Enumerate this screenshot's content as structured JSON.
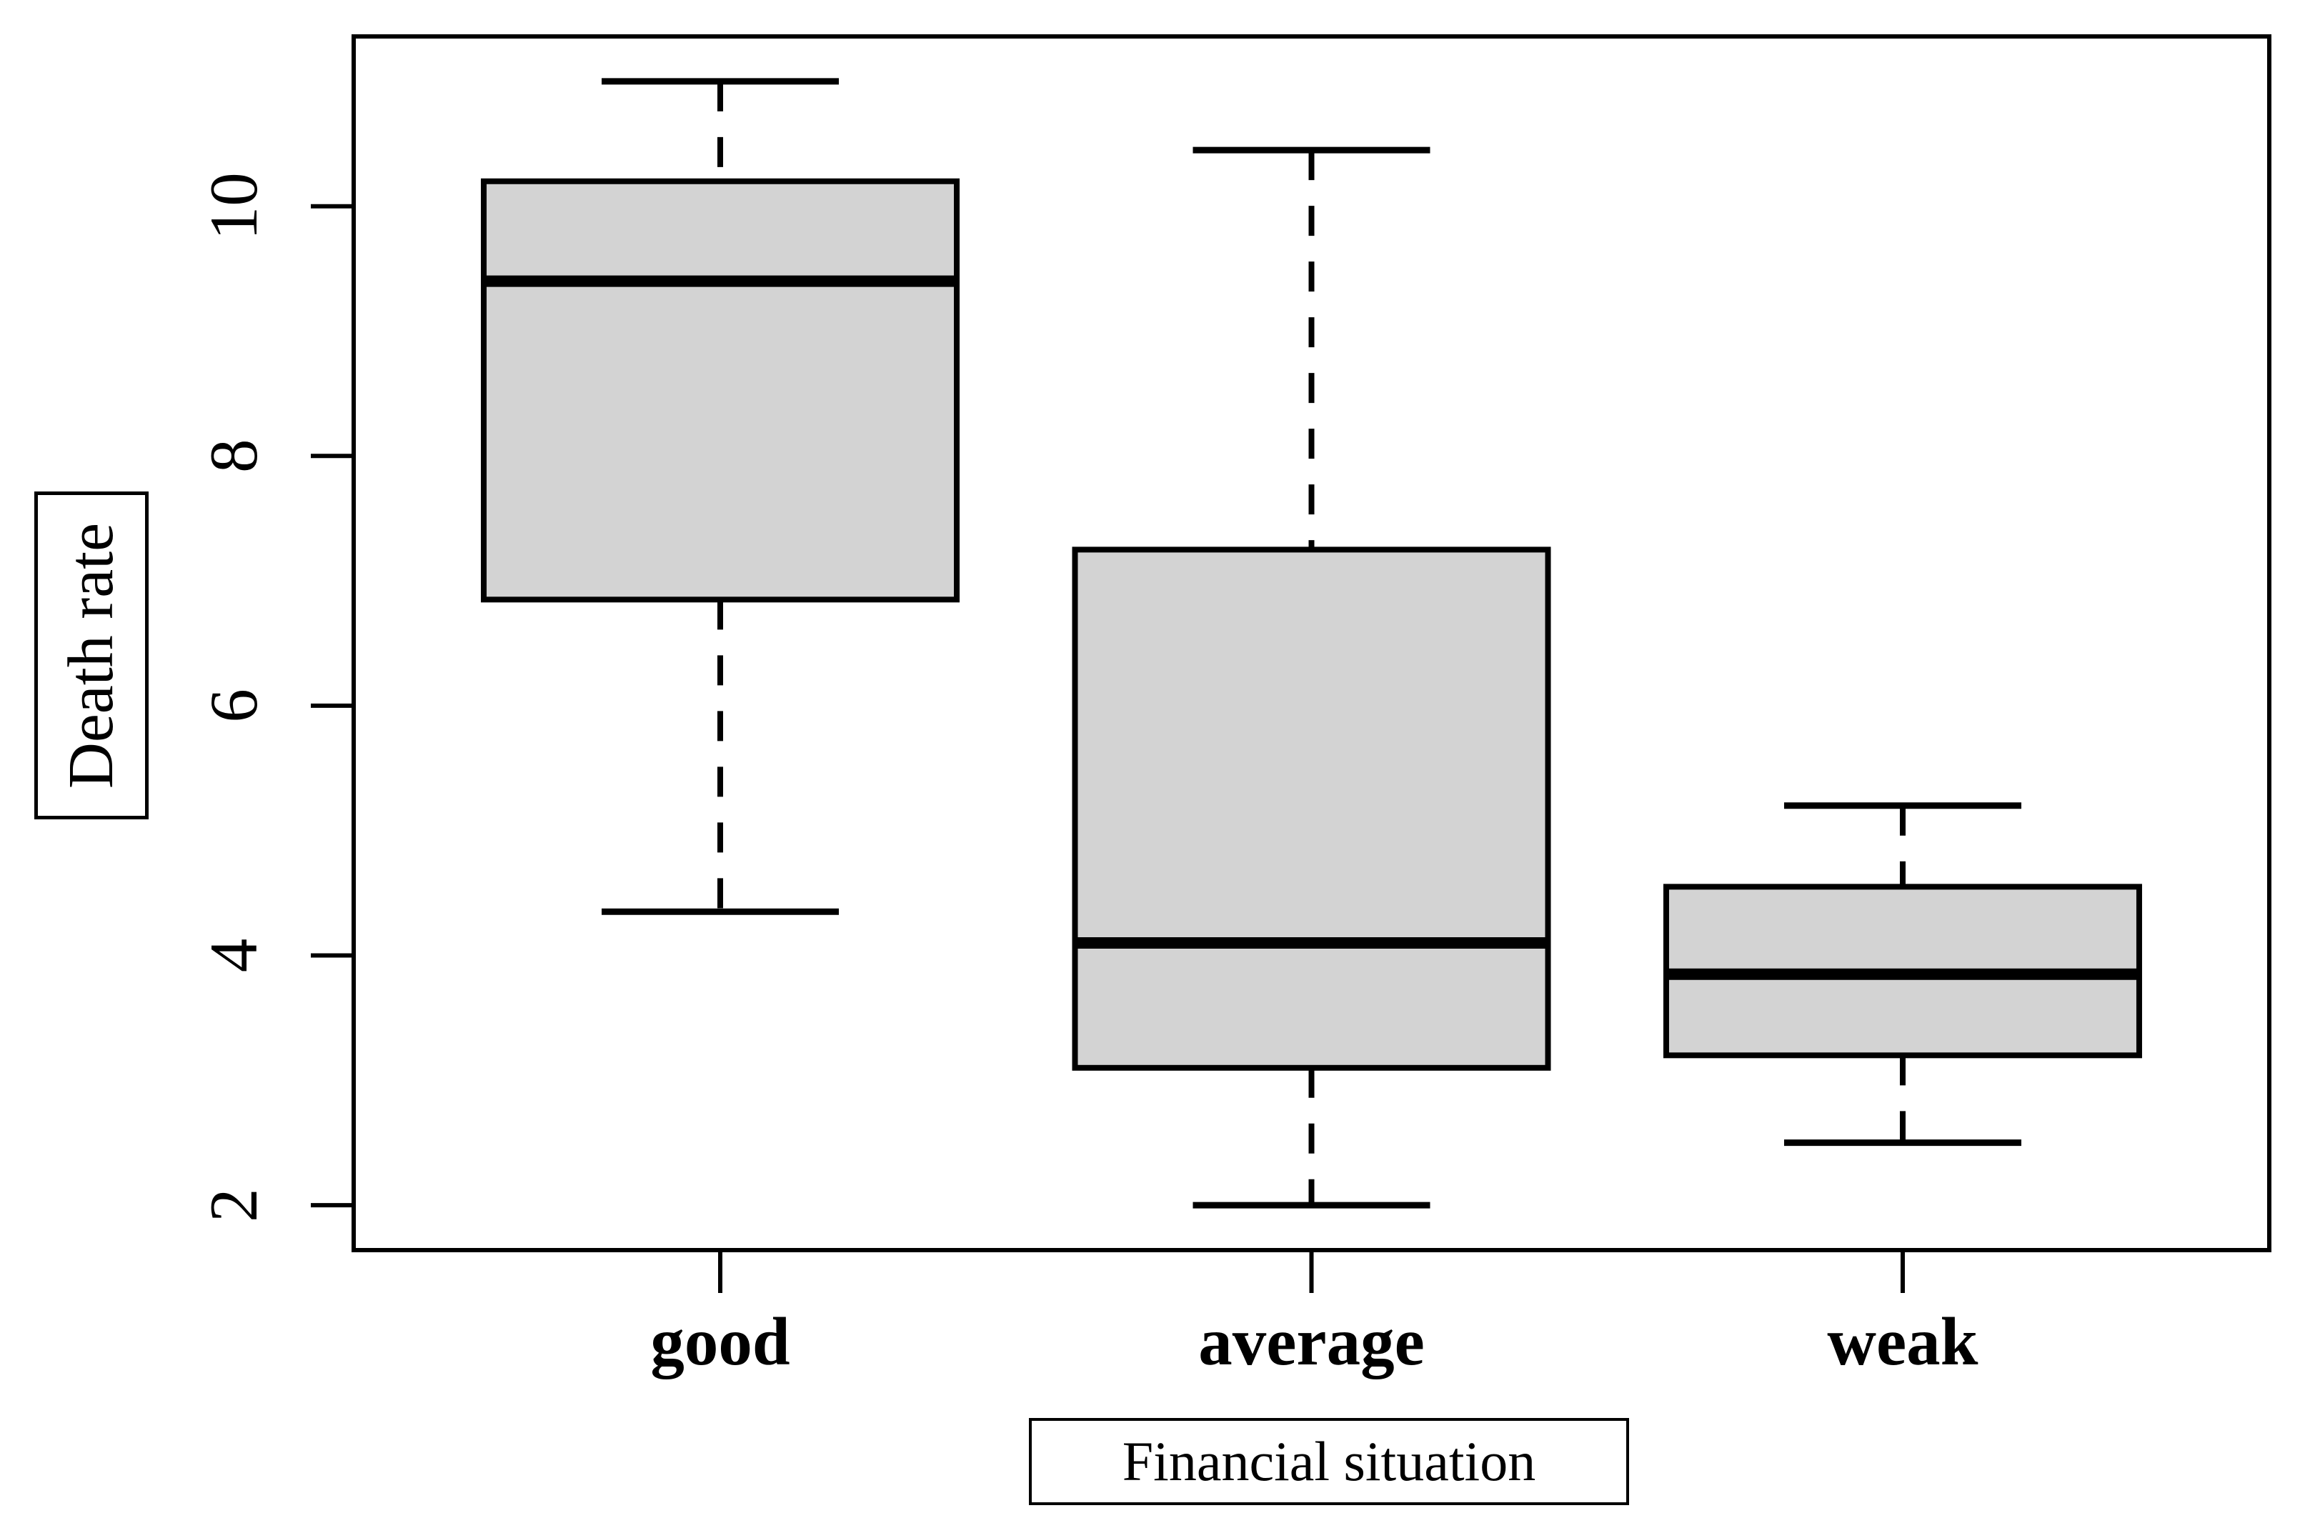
{
  "figure": {
    "background": "#ffffff"
  },
  "chart_data": {
    "type": "boxplot",
    "title": "",
    "xlabel": "Financial situation",
    "ylabel": "Death rate",
    "categories": [
      "good",
      "average",
      "weak"
    ],
    "series": [
      {
        "name": "good",
        "min": 4.35,
        "q1": 6.85,
        "median": 9.4,
        "q3": 10.2,
        "max": 11.0
      },
      {
        "name": "average",
        "min": 2.0,
        "q1": 3.1,
        "median": 4.1,
        "q3": 7.25,
        "max": 10.45
      },
      {
        "name": "weak",
        "min": 2.5,
        "q1": 3.2,
        "median": 3.85,
        "q3": 4.55,
        "max": 5.2
      }
    ],
    "yticks": [
      2,
      4,
      6,
      8,
      10
    ],
    "ytick_labels": [
      "2",
      "4",
      "6",
      "8",
      "10"
    ],
    "ylim": [
      1.64,
      11.36
    ],
    "grid": false,
    "legend": null,
    "whisker_style": "dashed",
    "colors": {
      "box_fill": "#d3d3d3",
      "line": "#000000",
      "background": "#ffffff"
    }
  }
}
